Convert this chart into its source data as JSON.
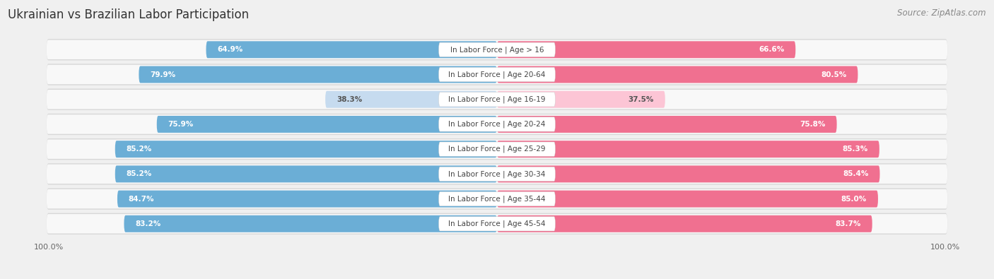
{
  "title": "Ukrainian vs Brazilian Labor Participation",
  "source": "Source: ZipAtlas.com",
  "categories": [
    "In Labor Force | Age > 16",
    "In Labor Force | Age 20-64",
    "In Labor Force | Age 16-19",
    "In Labor Force | Age 20-24",
    "In Labor Force | Age 25-29",
    "In Labor Force | Age 30-34",
    "In Labor Force | Age 35-44",
    "In Labor Force | Age 45-54"
  ],
  "ukrainian_values": [
    64.9,
    79.9,
    38.3,
    75.9,
    85.2,
    85.2,
    84.7,
    83.2
  ],
  "brazilian_values": [
    66.6,
    80.5,
    37.5,
    75.8,
    85.3,
    85.4,
    85.0,
    83.7
  ],
  "ukrainian_color": "#6baed6",
  "brazilian_color": "#f07090",
  "ukrainian_light_color": "#c6dbef",
  "brazilian_light_color": "#fcc5d5",
  "row_bg_color": "#e8e8e8",
  "row_bg_inner": "#f5f5f5",
  "background_color": "#f0f0f0",
  "title_fontsize": 12,
  "source_fontsize": 8.5,
  "label_fontsize": 7.5,
  "value_fontsize": 7.5,
  "legend_fontsize": 8.5,
  "max_value": 100.0,
  "threshold": 50
}
